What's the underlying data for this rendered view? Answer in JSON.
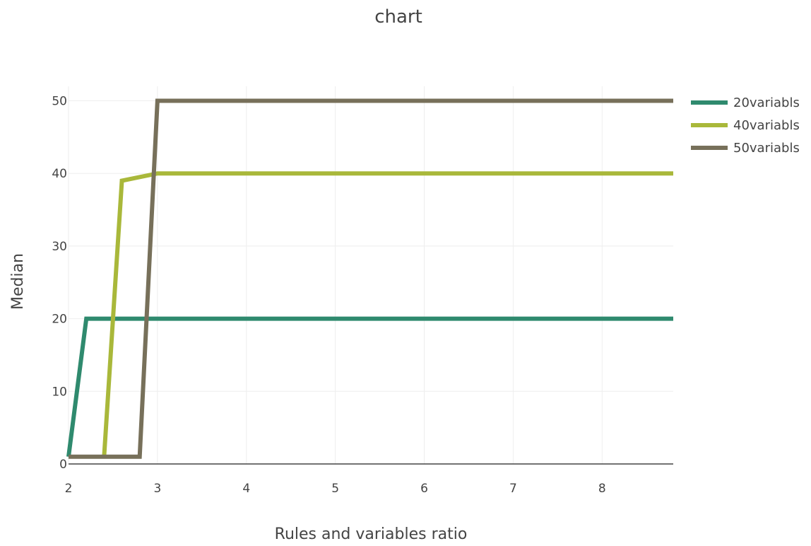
{
  "chart_data": {
    "type": "line",
    "title": "chart",
    "xlabel": "Rules and variables ratio",
    "ylabel": "Median",
    "xlim": [
      2,
      8.8
    ],
    "ylim": [
      0,
      52
    ],
    "xticks": [
      2,
      3,
      4,
      5,
      6,
      7,
      8
    ],
    "yticks": [
      0,
      10,
      20,
      30,
      40,
      50
    ],
    "xtick_labels": [
      "2",
      "3",
      "4",
      "5",
      "6",
      "7",
      "8"
    ],
    "ytick_labels": [
      "0",
      "10",
      "20",
      "30",
      "40",
      "50"
    ],
    "grid": true,
    "legend_position": "top-right",
    "series": [
      {
        "name": "20variabls",
        "color": "#2f8a6e",
        "x": [
          2.0,
          2.2,
          8.8
        ],
        "y": [
          1,
          20,
          20
        ]
      },
      {
        "name": "40variabls",
        "color": "#a9b83a",
        "x": [
          2.4,
          2.6,
          3.0,
          8.8
        ],
        "y": [
          1,
          39,
          40,
          40
        ]
      },
      {
        "name": "50variabls",
        "color": "#77705a",
        "x": [
          2.0,
          2.8,
          3.0,
          8.8
        ],
        "y": [
          1,
          1,
          50,
          50
        ]
      }
    ]
  }
}
